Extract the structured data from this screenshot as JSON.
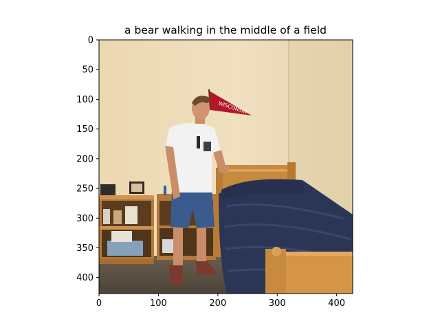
{
  "figure": {
    "title": "a bear walking in the middle of a field",
    "x_axis": {
      "range": [
        0,
        427
      ],
      "ticks": [
        {
          "value": 0,
          "label": "0"
        },
        {
          "value": 100,
          "label": "100"
        },
        {
          "value": 200,
          "label": "200"
        },
        {
          "value": 300,
          "label": "300"
        },
        {
          "value": 400,
          "label": "400"
        }
      ]
    },
    "y_axis": {
      "range": [
        0,
        427
      ],
      "inverted": true,
      "ticks": [
        {
          "value": 0,
          "label": "0"
        },
        {
          "value": 50,
          "label": "50"
        },
        {
          "value": 100,
          "label": "100"
        },
        {
          "value": 150,
          "label": "150"
        },
        {
          "value": 200,
          "label": "200"
        },
        {
          "value": 250,
          "label": "250"
        },
        {
          "value": 300,
          "label": "300"
        },
        {
          "value": 350,
          "label": "350"
        },
        {
          "value": 400,
          "label": "400"
        }
      ]
    },
    "image": {
      "pennant_text": "WISCONSIN",
      "colors": {
        "wall": "#e9d6b0",
        "wall_shadow": "#d8c39a",
        "carpet": "#5b5043",
        "bed_wood": "#c88a3e",
        "comforter": "#2b3556",
        "shirt": "#f2f2f2",
        "shorts": "#3b5b8f",
        "pennant": "#b0182a"
      }
    }
  }
}
